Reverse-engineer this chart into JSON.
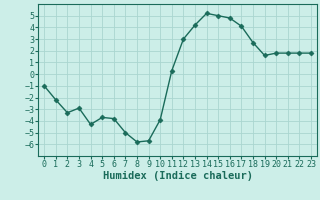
{
  "x": [
    0,
    1,
    2,
    3,
    4,
    5,
    6,
    7,
    8,
    9,
    10,
    11,
    12,
    13,
    14,
    15,
    16,
    17,
    18,
    19,
    20,
    21,
    22,
    23
  ],
  "y": [
    -1.0,
    -2.2,
    -3.3,
    -2.9,
    -4.3,
    -3.7,
    -3.8,
    -5.0,
    -5.8,
    -5.7,
    -3.9,
    0.3,
    3.0,
    4.2,
    5.2,
    5.0,
    4.8,
    4.1,
    2.7,
    1.6,
    1.8,
    1.8,
    1.8,
    1.8
  ],
  "line_color": "#1a6b5a",
  "bg_color": "#cceee8",
  "grid_color": "#aad6d0",
  "xlabel": "Humidex (Indice chaleur)",
  "ylim": [
    -7,
    6
  ],
  "xlim": [
    -0.5,
    23.5
  ],
  "yticks": [
    -6,
    -5,
    -4,
    -3,
    -2,
    -1,
    0,
    1,
    2,
    3,
    4,
    5
  ],
  "xticks": [
    0,
    1,
    2,
    3,
    4,
    5,
    6,
    7,
    8,
    9,
    10,
    11,
    12,
    13,
    14,
    15,
    16,
    17,
    18,
    19,
    20,
    21,
    22,
    23
  ],
  "tick_fontsize": 6.0,
  "label_fontsize": 7.5,
  "marker_size": 2.5,
  "linewidth": 1.0
}
